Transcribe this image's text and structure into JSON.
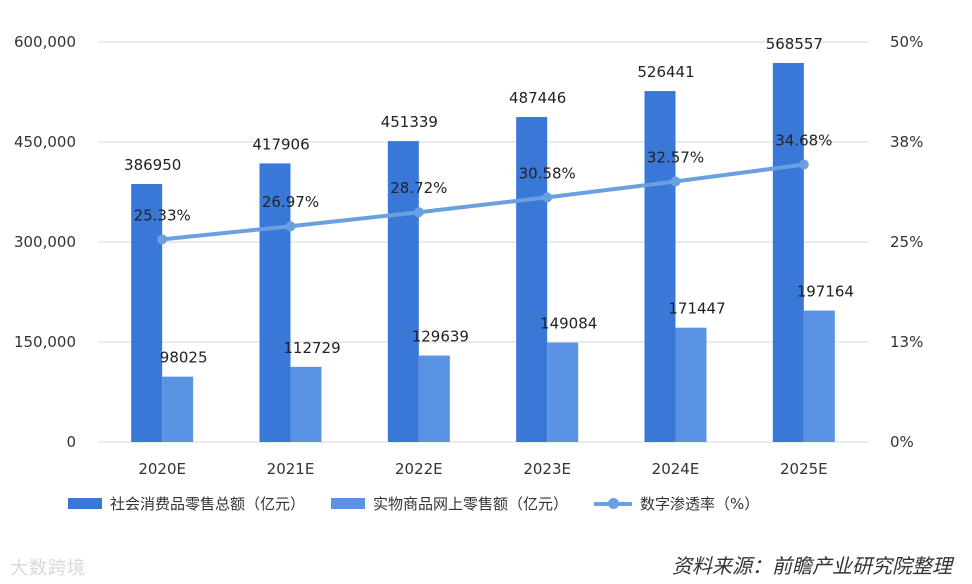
{
  "chart_data": {
    "type": "bar+line",
    "categories": [
      "2020E",
      "2021E",
      "2022E",
      "2023E",
      "2024E",
      "2025E"
    ],
    "series": [
      {
        "name": "社会消费品零售总额（亿元）",
        "type": "bar",
        "axis": "left",
        "color": "#3a78d8",
        "values": [
          386950,
          417906,
          451339,
          487446,
          526441,
          568557
        ]
      },
      {
        "name": "实物商品网上零售额（亿元）",
        "type": "bar",
        "axis": "left",
        "color": "#5b93e3",
        "values": [
          98025,
          112729,
          129639,
          149084,
          171447,
          197164
        ]
      },
      {
        "name": "数字渗透率（%）",
        "type": "line",
        "axis": "right",
        "color": "#6a9fe0",
        "values": [
          25.33,
          26.97,
          28.72,
          30.58,
          32.57,
          34.68
        ],
        "labels": [
          "25.33%",
          "26.97%",
          "28.72%",
          "30.58%",
          "32.57%",
          "34.68%"
        ]
      }
    ],
    "bar_labels": {
      "series0": [
        "386950",
        "417906",
        "451339",
        "487446",
        "526441",
        "568557"
      ],
      "series1": [
        "98025",
        "112729",
        "129639",
        "149084",
        "171447",
        "197164"
      ]
    },
    "y_left": {
      "min": 0,
      "max": 600000,
      "ticks": [
        0,
        150000,
        300000,
        450000,
        600000
      ],
      "tick_labels": [
        "0",
        "150,000",
        "300,000",
        "450,000",
        "600,000"
      ]
    },
    "y_right": {
      "min": 0,
      "max": 50,
      "ticks": [
        0,
        12.5,
        25,
        37.5,
        50
      ],
      "tick_labels": [
        "0%",
        "13%",
        "25%",
        "38%",
        "50%"
      ]
    },
    "grid": true,
    "legend_position": "bottom"
  },
  "legend": {
    "bar1": "社会消费品零售总额（亿元）",
    "bar2": "实物商品网上零售额（亿元）",
    "line": "数字渗透率（%）"
  },
  "source": "资料来源：前瞻产业研究院整理",
  "watermark": "大数跨境"
}
